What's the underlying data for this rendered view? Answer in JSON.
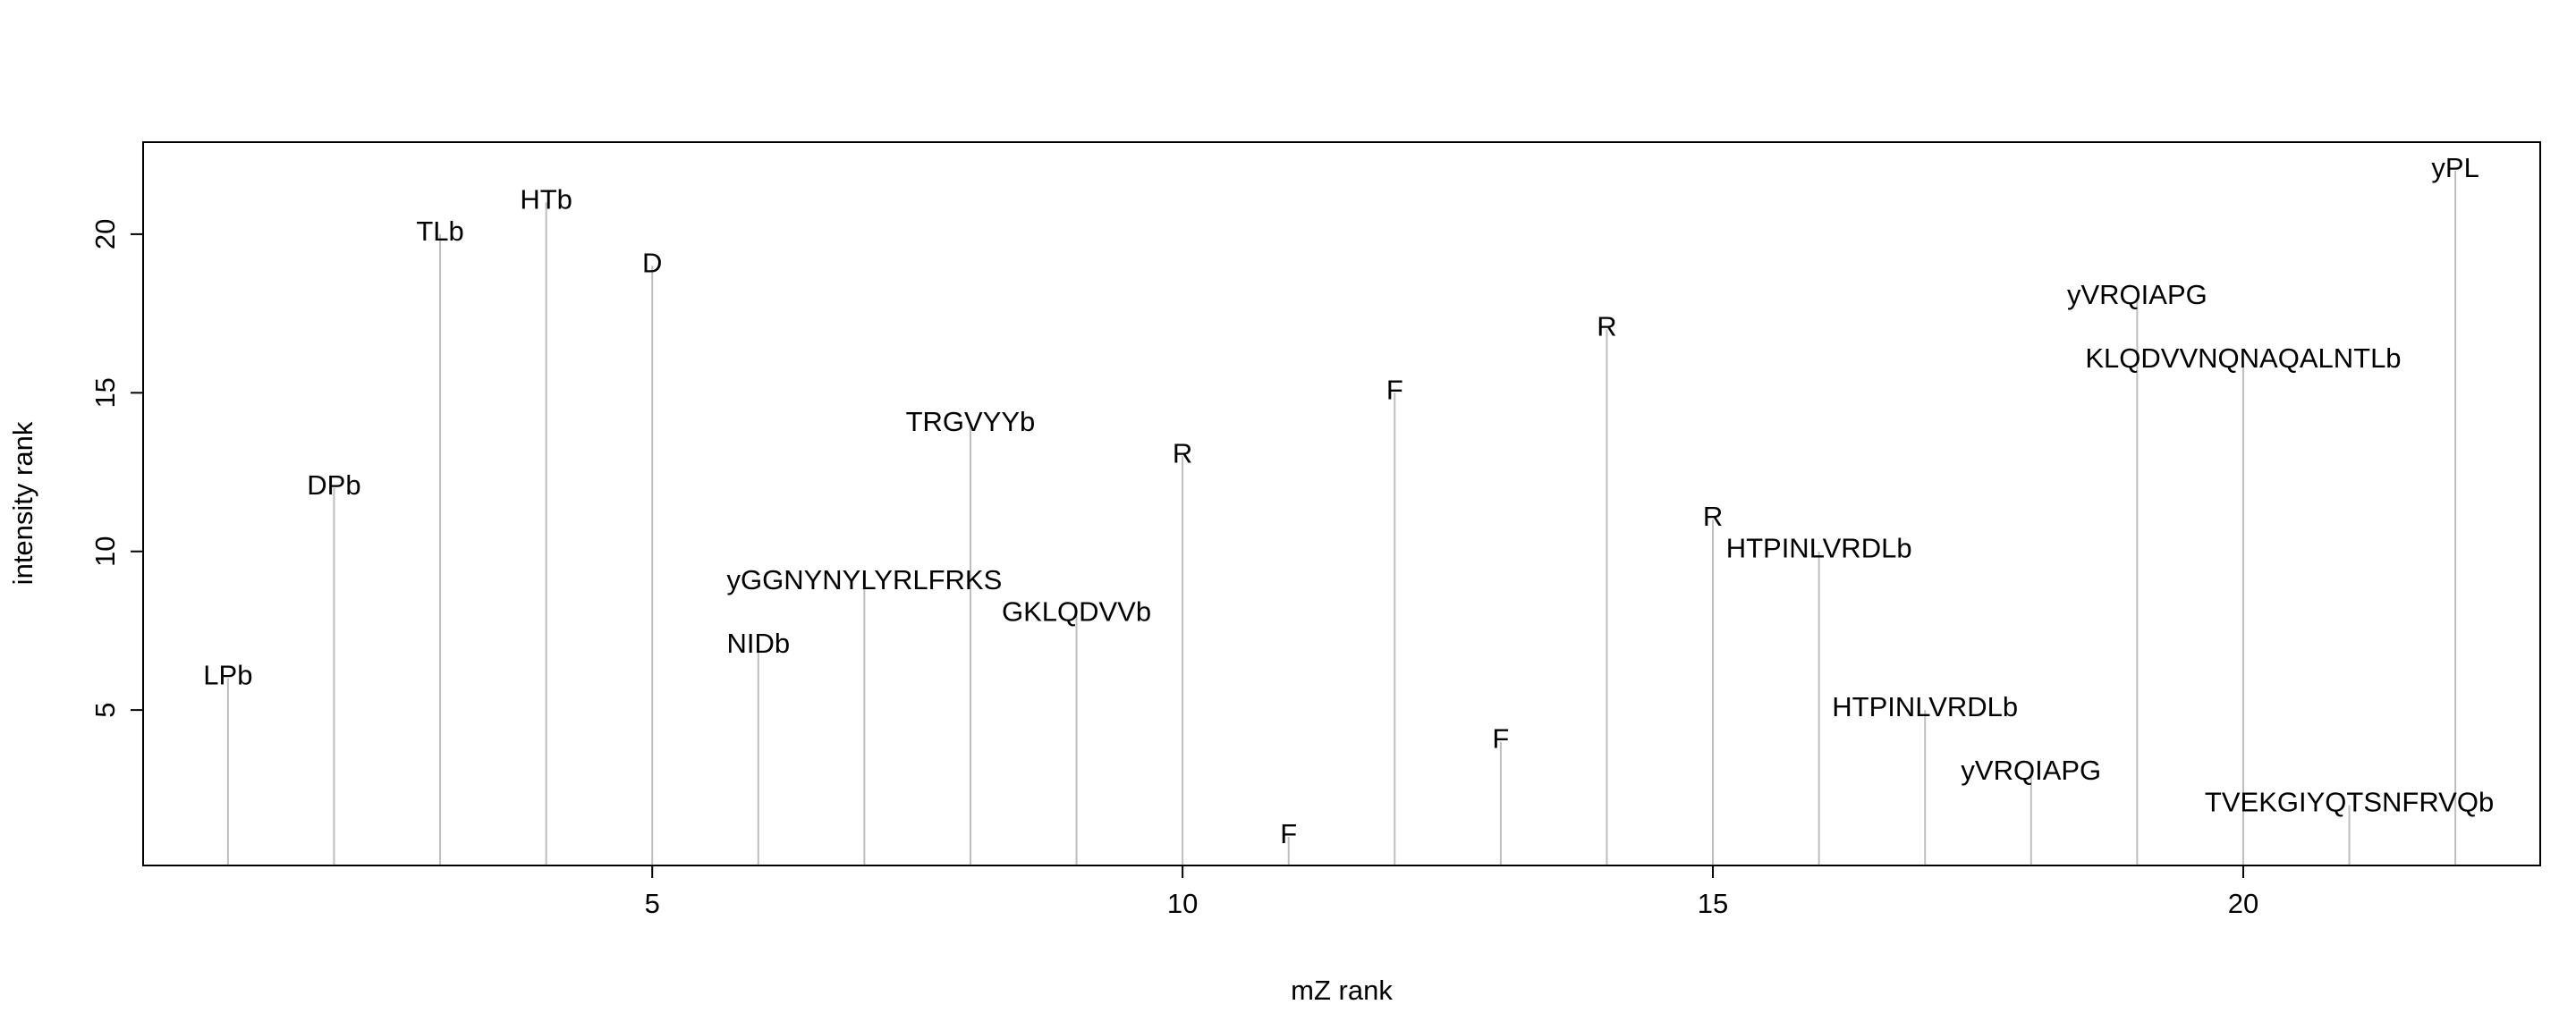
{
  "chart_data": {
    "type": "bar",
    "xlabel": "mZ rank",
    "ylabel": "intensity rank",
    "xlim": [
      0.2,
      22.8
    ],
    "ylim": [
      0.1,
      22.9
    ],
    "x_ticks": [
      5,
      10,
      15,
      20
    ],
    "y_ticks": [
      5,
      10,
      15,
      20
    ],
    "line_color": "#bebebe",
    "points": [
      {
        "x": 1,
        "y": 6,
        "label": "LPb"
      },
      {
        "x": 2,
        "y": 12,
        "label": "DPb"
      },
      {
        "x": 3,
        "y": 20,
        "label": "TLb"
      },
      {
        "x": 4,
        "y": 21,
        "label": "HTb"
      },
      {
        "x": 5,
        "y": 19,
        "label": "D"
      },
      {
        "x": 6,
        "y": 7,
        "label": "NIDb"
      },
      {
        "x": 7,
        "y": 9,
        "label": "yGGNYNYLYRLFRKS"
      },
      {
        "x": 8,
        "y": 14,
        "label": "TRGVYYb"
      },
      {
        "x": 9,
        "y": 8,
        "label": "GKLQDVVb"
      },
      {
        "x": 10,
        "y": 13,
        "label": "R"
      },
      {
        "x": 11,
        "y": 1,
        "label": "F"
      },
      {
        "x": 12,
        "y": 15,
        "label": "F"
      },
      {
        "x": 13,
        "y": 4,
        "label": "F"
      },
      {
        "x": 14,
        "y": 17,
        "label": "R"
      },
      {
        "x": 15,
        "y": 11,
        "label": "R"
      },
      {
        "x": 16,
        "y": 10,
        "label": "HTPINLVRDLb"
      },
      {
        "x": 17,
        "y": 5,
        "label": "HTPINLVRDLb"
      },
      {
        "x": 18,
        "y": 3,
        "label": "yVRQIAPG"
      },
      {
        "x": 19,
        "y": 18,
        "label": "yVRQIAPG"
      },
      {
        "x": 20,
        "y": 16,
        "label": "KLQDVVNQNAQALNTLb"
      },
      {
        "x": 21,
        "y": 2,
        "label": "TVEKGIYQTSNFRVQb"
      },
      {
        "x": 22,
        "y": 22,
        "label": "yPL"
      }
    ]
  }
}
